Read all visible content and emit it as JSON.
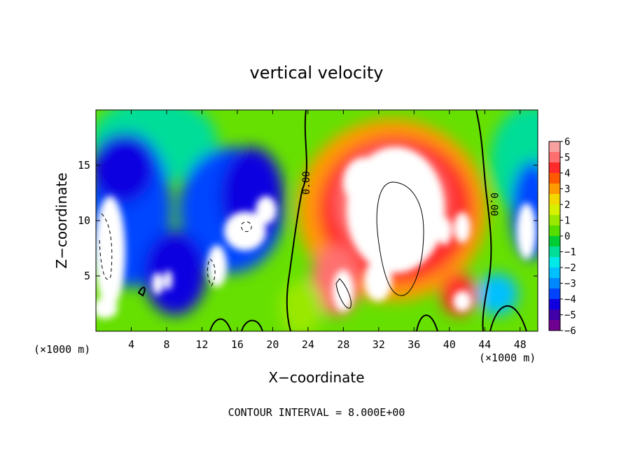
{
  "chart_data": {
    "type": "heatmap",
    "title": "vertical velocity",
    "xlabel": "X−coordinate",
    "ylabel": "Z−coordinate",
    "x_unit_label": "(×1000 m)",
    "y_unit_label": "(×1000 m)",
    "xlim": [
      0,
      50
    ],
    "ylim": [
      0,
      20
    ],
    "x_ticks": [
      4,
      8,
      12,
      16,
      20,
      24,
      28,
      32,
      36,
      40,
      44,
      48
    ],
    "y_ticks": [
      5,
      10,
      15
    ],
    "colorbar": {
      "range": [
        -6,
        6
      ],
      "tick_labels": [
        "6",
        "5",
        "4",
        "3",
        "2",
        "1",
        "0",
        "−1",
        "−2",
        "−3",
        "−4",
        "−5",
        "−6"
      ],
      "colors": [
        "#f7a1a1",
        "#ff6f6f",
        "#ff2a2a",
        "#ff5a00",
        "#ff9a00",
        "#f3d800",
        "#d6f000",
        "#9ae800",
        "#55dd00",
        "#00cc33",
        "#00dd99",
        "#00e8e8",
        "#00c0ff",
        "#0088ff",
        "#0044ff",
        "#1000e0",
        "#4000a8",
        "#700090"
      ]
    },
    "contour_labels": [
      "0.00",
      "0.00"
    ],
    "contour_interval_text": "CONTOUR INTERVAL = 8.000E+00",
    "features": [
      {
        "desc": "updraft core",
        "x_range": [
          25,
          44
        ],
        "z_range": [
          2,
          18
        ],
        "max_sign": "positive"
      },
      {
        "desc": "downdraft",
        "x_range": [
          0,
          6
        ],
        "z_range": [
          1,
          16
        ],
        "max_sign": "negative"
      },
      {
        "desc": "downdraft",
        "x_range": [
          7,
          22
        ],
        "z_range": [
          1,
          15
        ],
        "max_sign": "negative"
      },
      {
        "desc": "downdraft",
        "x_range": [
          46,
          50
        ],
        "z_range": [
          5,
          14
        ],
        "max_sign": "negative"
      }
    ]
  }
}
